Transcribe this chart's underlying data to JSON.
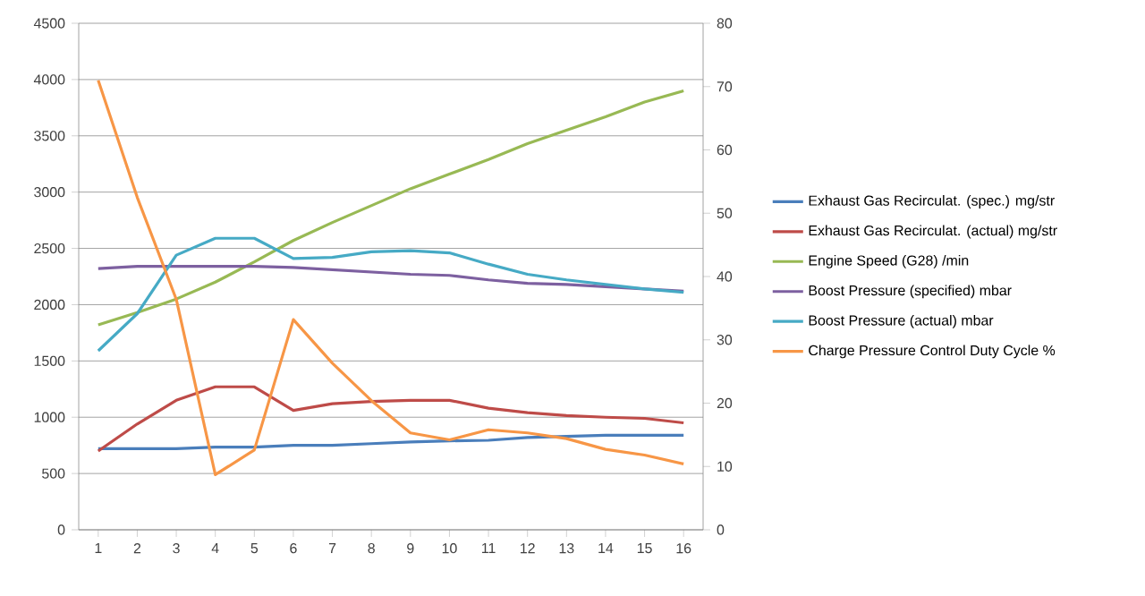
{
  "chart_data": {
    "type": "line",
    "categories": [
      "1",
      "2",
      "3",
      "4",
      "5",
      "6",
      "7",
      "8",
      "9",
      "10",
      "11",
      "12",
      "13",
      "14",
      "15",
      "16"
    ],
    "ylim": [
      0,
      4500
    ],
    "yticks": [
      0,
      500,
      1000,
      1500,
      2000,
      2500,
      3000,
      3500,
      4000,
      4500
    ],
    "y2lim": [
      0,
      80
    ],
    "y2ticks": [
      0,
      10,
      20,
      30,
      40,
      50,
      60,
      70,
      80
    ],
    "grid": "y",
    "legend": "right",
    "marker": "none",
    "line_style": "solid",
    "series": [
      {
        "name": "Exhaust Gas Recirculat. (spec.)  mg/str",
        "color": "#4a7ebb",
        "values": [
          720,
          720,
          720,
          735,
          735,
          750,
          750,
          765,
          780,
          790,
          795,
          820,
          830,
          840,
          840,
          840
        ]
      },
      {
        "name": "Exhaust Gas Recirculat. (actual)  mg/str",
        "color": "#be4b48",
        "values": [
          700,
          940,
          1150,
          1270,
          1270,
          1060,
          1120,
          1140,
          1150,
          1150,
          1080,
          1040,
          1015,
          1000,
          990,
          950
        ]
      },
      {
        "name": "Engine Speed (G28)  /min",
        "color": "#98b954",
        "values": [
          1820,
          1930,
          2050,
          2200,
          2380,
          2570,
          2730,
          2880,
          3030,
          3160,
          3290,
          3430,
          3550,
          3670,
          3800,
          3900
        ]
      },
      {
        "name": "Boost Pressure (specified)  mbar",
        "color": "#7d60a0",
        "values": [
          2320,
          2340,
          2340,
          2340,
          2340,
          2330,
          2310,
          2290,
          2270,
          2260,
          2220,
          2190,
          2180,
          2160,
          2140,
          2120
        ]
      },
      {
        "name": "Boost Pressure (actual)  mbar",
        "color": "#46aac5",
        "values": [
          1590,
          1920,
          2440,
          2590,
          2590,
          2410,
          2420,
          2470,
          2480,
          2460,
          2360,
          2270,
          2220,
          2180,
          2140,
          2110
        ]
      },
      {
        "name": "Charge Pressure Control Duty Cycle  %",
        "color": "#f79646",
        "axis": "y2",
        "values": [
          71,
          52.5,
          36.4,
          8.7,
          12.6,
          33.2,
          26.3,
          20.4,
          15.3,
          14.2,
          15.8,
          15.3,
          14.4,
          12.7,
          11.8,
          10.4
        ]
      }
    ]
  }
}
